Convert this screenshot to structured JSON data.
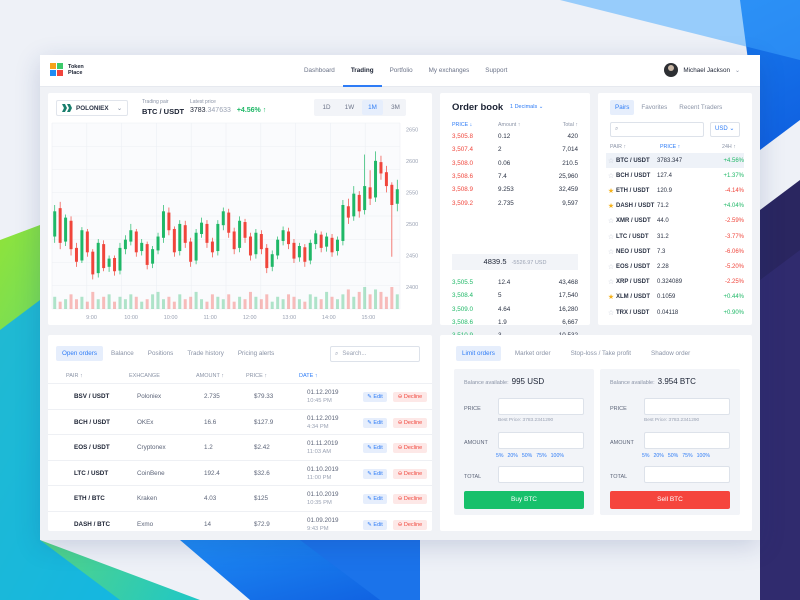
{
  "brand": {
    "name": "Token Place"
  },
  "nav": {
    "items": [
      "Dashboard",
      "Trading",
      "Portfolio",
      "My exchanges",
      "Support"
    ],
    "active": "Trading"
  },
  "user": {
    "name": "Michael Jackson"
  },
  "chart_panel": {
    "exchange": "POLONIEX",
    "pair_label": "Trading pair",
    "pair": "BTC / USDT",
    "price_label": "Latest price",
    "price_main": "3783",
    "price_dim": ".347633",
    "change": "+4.56% ↑",
    "timeframes": [
      "1D",
      "1W",
      "1M",
      "3M"
    ],
    "active_tf": "1M"
  },
  "chart_data": {
    "type": "candlestick",
    "x_ticks": [
      "9:00",
      "10:00",
      "10:00",
      "11:00",
      "12:00",
      "13:00",
      "14:00",
      "15:00"
    ],
    "y_ticks": [
      "2650",
      "2600",
      "2550",
      "2500",
      "2450",
      "2400"
    ],
    "ylim": [
      2400,
      2660
    ],
    "candles": [
      [
        2480,
        2520,
        2470,
        2530
      ],
      [
        2525,
        2470,
        2460,
        2535
      ],
      [
        2472,
        2510,
        2465,
        2515
      ],
      [
        2505,
        2460,
        2450,
        2512
      ],
      [
        2462,
        2440,
        2432,
        2470
      ],
      [
        2442,
        2490,
        2438,
        2495
      ],
      [
        2488,
        2455,
        2448,
        2492
      ],
      [
        2456,
        2420,
        2412,
        2460
      ],
      [
        2422,
        2470,
        2415,
        2476
      ],
      [
        2468,
        2430,
        2425,
        2474
      ],
      [
        2432,
        2445,
        2424,
        2450
      ],
      [
        2446,
        2425,
        2418,
        2450
      ],
      [
        2426,
        2462,
        2420,
        2470
      ],
      [
        2460,
        2475,
        2452,
        2482
      ],
      [
        2472,
        2490,
        2466,
        2500
      ],
      [
        2488,
        2455,
        2448,
        2492
      ],
      [
        2457,
        2470,
        2450,
        2476
      ],
      [
        2468,
        2435,
        2428,
        2472
      ],
      [
        2437,
        2460,
        2430,
        2465
      ],
      [
        2458,
        2480,
        2452,
        2486
      ],
      [
        2478,
        2520,
        2470,
        2530
      ],
      [
        2518,
        2490,
        2482,
        2526
      ],
      [
        2492,
        2455,
        2448,
        2496
      ],
      [
        2457,
        2500,
        2450,
        2506
      ],
      [
        2498,
        2470,
        2462,
        2505
      ],
      [
        2472,
        2440,
        2432,
        2478
      ],
      [
        2442,
        2486,
        2436,
        2492
      ],
      [
        2484,
        2502,
        2478,
        2510
      ],
      [
        2500,
        2470,
        2462,
        2506
      ],
      [
        2472,
        2455,
        2447,
        2478
      ],
      [
        2457,
        2500,
        2450,
        2506
      ],
      [
        2498,
        2520,
        2490,
        2526
      ],
      [
        2518,
        2486,
        2478,
        2524
      ],
      [
        2488,
        2460,
        2452,
        2494
      ],
      [
        2462,
        2505,
        2455,
        2512
      ],
      [
        2503,
        2478,
        2470,
        2508
      ],
      [
        2480,
        2450,
        2442,
        2486
      ],
      [
        2452,
        2486,
        2445,
        2492
      ],
      [
        2484,
        2460,
        2452,
        2490
      ],
      [
        2462,
        2430,
        2422,
        2468
      ],
      [
        2432,
        2452,
        2425,
        2458
      ],
      [
        2450,
        2475,
        2444,
        2480
      ],
      [
        2473,
        2490,
        2466,
        2496
      ],
      [
        2488,
        2468,
        2460,
        2494
      ],
      [
        2470,
        2445,
        2438,
        2476
      ],
      [
        2447,
        2465,
        2440,
        2470
      ],
      [
        2463,
        2440,
        2432,
        2468
      ],
      [
        2442,
        2470,
        2436,
        2475
      ],
      [
        2468,
        2485,
        2460,
        2490
      ],
      [
        2483,
        2462,
        2455,
        2488
      ],
      [
        2464,
        2480,
        2456,
        2486
      ],
      [
        2478,
        2455,
        2448,
        2484
      ],
      [
        2457,
        2475,
        2450,
        2480
      ],
      [
        2473,
        2530,
        2466,
        2538
      ],
      [
        2528,
        2510,
        2500,
        2540
      ],
      [
        2512,
        2548,
        2505,
        2560
      ],
      [
        2546,
        2520,
        2510,
        2552
      ],
      [
        2522,
        2560,
        2515,
        2610
      ],
      [
        2558,
        2540,
        2530,
        2585
      ],
      [
        2542,
        2600,
        2535,
        2615
      ],
      [
        2598,
        2580,
        2570,
        2608
      ],
      [
        2582,
        2560,
        2550,
        2592
      ],
      [
        2562,
        2530,
        2448,
        2566
      ],
      [
        2532,
        2555,
        2520,
        2570
      ]
    ],
    "volumes": [
      5,
      3,
      4,
      6,
      4,
      5,
      3,
      7,
      4,
      5,
      6,
      3,
      5,
      4,
      6,
      5,
      3,
      4,
      6,
      7,
      4,
      5,
      3,
      6,
      4,
      5,
      7,
      4,
      3,
      6,
      5,
      4,
      6,
      3,
      5,
      4,
      7,
      5,
      4,
      6,
      3,
      5,
      4,
      6,
      5,
      4,
      3,
      6,
      5,
      4,
      7,
      5,
      4,
      6,
      8,
      5,
      7,
      9,
      6,
      8,
      7,
      5,
      9,
      6
    ]
  },
  "orderbook": {
    "title": "Order book",
    "decimals": "1 Decimals ⌄",
    "headers": [
      "PRICE ↓",
      "Amount ↑",
      "Total ↑"
    ],
    "asks": [
      [
        "3,505.8",
        "0.12",
        "420"
      ],
      [
        "3,507.4",
        "2",
        "7,014"
      ],
      [
        "3,508.0",
        "0.06",
        "210.5"
      ],
      [
        "3,508.6",
        "7.4",
        "25,960"
      ],
      [
        "3,508.9",
        "9.253",
        "32,459"
      ],
      [
        "3,509.2",
        "2.735",
        "9,597"
      ]
    ],
    "mid_price": "4839.5",
    "mid_sub": "-5526.97 USD",
    "bids": [
      [
        "3,505.5",
        "12.4",
        "43,468"
      ],
      [
        "3,508.4",
        "5",
        "17,540"
      ],
      [
        "3,509.0",
        "4.64",
        "16,280"
      ],
      [
        "3,508.6",
        "1.9",
        "6,667"
      ],
      [
        "3,510.9",
        "3",
        "10,532"
      ],
      [
        "3,511.2",
        "7.3",
        "25,631"
      ]
    ]
  },
  "pairs": {
    "tabs": [
      "Pairs",
      "Favorites",
      "Recent Traders"
    ],
    "active": "Pairs",
    "search_placeholder": "",
    "currency": "USD ⌄",
    "headers": [
      "PAIR ↑",
      "PRICE ↑",
      "24H ↑"
    ],
    "rows": [
      {
        "star": false,
        "pair": "BTC / USDT",
        "price": "3783.347",
        "change": "+4.56%",
        "up": true
      },
      {
        "star": false,
        "pair": "BCH / USDT",
        "price": "127.4",
        "change": "+1.37%",
        "up": true
      },
      {
        "star": true,
        "pair": "ETH / USDT",
        "price": "120.9",
        "change": "-4.14%",
        "up": false
      },
      {
        "star": true,
        "pair": "DASH / USDT",
        "price": "71.2",
        "change": "+4.04%",
        "up": true
      },
      {
        "star": false,
        "pair": "XMR / USDT",
        "price": "44.0",
        "change": "-2.59%",
        "up": false
      },
      {
        "star": false,
        "pair": "LTC / USDT",
        "price": "31.2",
        "change": "-3.77%",
        "up": false
      },
      {
        "star": false,
        "pair": "NEO / USDT",
        "price": "7.3",
        "change": "-6.06%",
        "up": false
      },
      {
        "star": false,
        "pair": "EOS / USDT",
        "price": "2.28",
        "change": "-5.20%",
        "up": false
      },
      {
        "star": false,
        "pair": "XRP / USDT",
        "price": "0.324089",
        "change": "-2.25%",
        "up": false
      },
      {
        "star": true,
        "pair": "XLM / USDT",
        "price": "0.1059",
        "change": "+0.44%",
        "up": true
      },
      {
        "star": false,
        "pair": "TRX / USDT",
        "price": "0.04118",
        "change": "+0.90%",
        "up": true
      }
    ]
  },
  "orders": {
    "tabs": [
      "Open orders",
      "Balance",
      "Positions",
      "Trade history",
      "Pricing alerts"
    ],
    "active": "Open orders",
    "search_placeholder": "Search...",
    "headers": [
      "PAIR ↑",
      "EXHCANGE",
      "AMOUNT ↑",
      "PRICE ↑",
      "DATE ↑"
    ],
    "edit_label": "✎ Edit",
    "decline_label": "⊖ Decline",
    "rows": [
      {
        "pair": "BSV / USDT",
        "exchange": "Poloniex",
        "amount": "2.735",
        "price": "$79.33",
        "date": "01.12.2019",
        "time": "10:45 PM"
      },
      {
        "pair": "BCH / USDT",
        "exchange": "OKEx",
        "amount": "16.6",
        "price": "$127.9",
        "date": "01.12.2019",
        "time": "4:34 PM"
      },
      {
        "pair": "EOS / USDT",
        "exchange": "Cryptonex",
        "amount": "1.2",
        "price": "$2.42",
        "date": "01.11.2019",
        "time": "11:03 AM"
      },
      {
        "pair": "LTC / USDT",
        "exchange": "CoinBene",
        "amount": "192.4",
        "price": "$32.6",
        "date": "01.10.2019",
        "time": "11:00 PM"
      },
      {
        "pair": "ETH / BTC",
        "exchange": "Kraken",
        "amount": "4.03",
        "price": "$125",
        "date": "01.10.2019",
        "time": "10:35 PM"
      },
      {
        "pair": "DASH / BTC",
        "exchange": "Exmo",
        "amount": "14",
        "price": "$72.9",
        "date": "01.09.2019",
        "time": "9:43 PM"
      }
    ]
  },
  "trade": {
    "tabs": [
      "Limit orders",
      "Market order",
      "Stop-loss / Take profit",
      "Shadow order"
    ],
    "active": "Limit orders",
    "buy": {
      "balance_label": "Balance available:",
      "balance": "995 USD",
      "price_label": "PRICE",
      "amount_label": "AMOUNT",
      "total_label": "TOTAL",
      "best_price": "Best Price: 3783.2341290",
      "pcts": [
        "5%",
        "20%",
        "50%",
        "75%",
        "100%"
      ],
      "button": "Buy BTC"
    },
    "sell": {
      "balance_label": "Balance available:",
      "balance": "3.954 BTC",
      "price_label": "PRICE",
      "amount_label": "AMOUNT",
      "total_label": "TOTAL",
      "best_price": "Best Price: 3783.2341290",
      "pcts": [
        "5%",
        "20%",
        "50%",
        "75%",
        "100%"
      ],
      "button": "Sell BTC"
    },
    "colors": {
      "buy": "#17c06b",
      "sell": "#f5453d"
    }
  },
  "colors": {
    "accent": "#2e7cf6",
    "up": "#1fb867",
    "down": "#f0453b"
  }
}
